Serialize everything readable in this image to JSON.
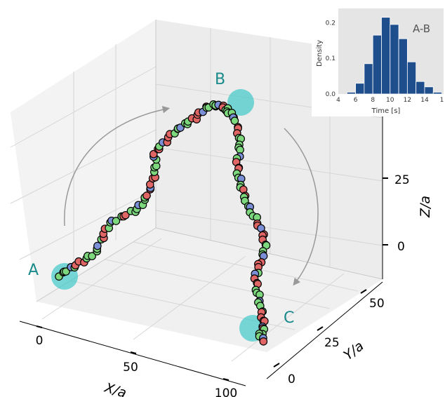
{
  "chart_data": [
    {
      "type": "scatter",
      "subtype": "3d-trajectory",
      "xlabel": "X/a",
      "ylabel": "Y/a",
      "zlabel": "Z/a",
      "x_ticks": [
        "0",
        "50",
        "100"
      ],
      "y_ticks": [
        "0",
        "25",
        "50"
      ],
      "z_ticks": [
        "0",
        "25"
      ],
      "point_labels": [
        "A",
        "B",
        "C"
      ],
      "marker_colors": {
        "green": "#7dd87d",
        "red": "#e06666",
        "blue": "#7b8fd6"
      },
      "highlight_color": "#40c8c8",
      "arrow_color": "#999999",
      "grid": true
    },
    {
      "type": "bar",
      "subtype": "histogram",
      "annotation": "A-B",
      "xlabel": "Time [s]",
      "ylabel": "Density",
      "x_ticks": [
        "4",
        "6",
        "8",
        "10",
        "12",
        "14",
        "1"
      ],
      "y_ticks": [
        "0.0",
        "0.1",
        "0.2"
      ],
      "xlim": [
        4,
        16.2
      ],
      "ylim": [
        0,
        0.24
      ],
      "bin_edges": [
        5,
        6,
        7,
        8,
        9,
        10,
        11,
        12,
        13,
        14,
        15,
        16
      ],
      "values": [
        0.005,
        0.03,
        0.085,
        0.165,
        0.215,
        0.195,
        0.155,
        0.09,
        0.035,
        0.02,
        0.005
      ],
      "bar_color": "#1f4e8c",
      "background": "#e5e5e5"
    }
  ]
}
